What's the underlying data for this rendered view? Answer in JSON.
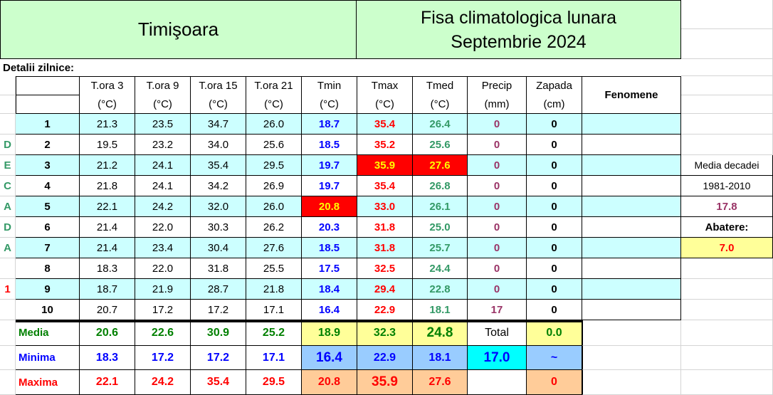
{
  "header": {
    "city": "Timişoara",
    "title_line1": "Fisa climatologica lunara",
    "title_line2": "Septembrie 2024"
  },
  "section_label": "Detalii zilnice:",
  "table": {
    "columns": [
      {
        "name": "T.ora 3",
        "unit": "(°C)"
      },
      {
        "name": "T.ora 9",
        "unit": "(°C)"
      },
      {
        "name": "T.ora 15",
        "unit": "(°C)"
      },
      {
        "name": "T.ora 21",
        "unit": "(°C)"
      },
      {
        "name": "Tmin",
        "unit": "(°C)"
      },
      {
        "name": "Tmax",
        "unit": "(°C)"
      },
      {
        "name": "Tmed",
        "unit": "(°C)"
      },
      {
        "name": "Precip",
        "unit": "(mm)"
      },
      {
        "name": "Zapada",
        "unit": "(cm)"
      },
      {
        "name": "Fenomene"
      }
    ],
    "rows": [
      {
        "day": "1",
        "values": [
          "21.3",
          "23.5",
          "34.7",
          "26.0",
          "18.7",
          "35.4",
          "26.4",
          "0",
          "0"
        ]
      },
      {
        "mark": "D",
        "day": "2",
        "values": [
          "19.5",
          "23.2",
          "34.0",
          "25.6",
          "18.5",
          "35.2",
          "25.6",
          "0",
          "0"
        ]
      },
      {
        "mark": "E",
        "day": "3",
        "values": [
          "21.2",
          "24.1",
          "35.4",
          "29.5",
          "19.7",
          "35.9",
          "27.6",
          "0",
          "0"
        ]
      },
      {
        "mark": "C",
        "day": "4",
        "values": [
          "21.8",
          "24.1",
          "34.2",
          "26.9",
          "19.7",
          "35.4",
          "26.8",
          "0",
          "0"
        ]
      },
      {
        "mark": "A",
        "day": "5",
        "values": [
          "22.1",
          "24.2",
          "32.0",
          "26.0",
          "20.8",
          "33.0",
          "26.1",
          "0",
          "0"
        ]
      },
      {
        "mark": "D",
        "day": "6",
        "values": [
          "21.4",
          "22.0",
          "30.3",
          "26.2",
          "20.3",
          "31.8",
          "25.0",
          "0",
          "0"
        ]
      },
      {
        "mark": "A",
        "day": "7",
        "values": [
          "21.4",
          "23.4",
          "30.4",
          "27.6",
          "18.5",
          "31.8",
          "25.7",
          "0",
          "0"
        ]
      },
      {
        "day": "8",
        "values": [
          "18.3",
          "22.0",
          "31.8",
          "25.5",
          "17.5",
          "32.5",
          "24.4",
          "0",
          "0"
        ]
      },
      {
        "mark": "1",
        "day": "9",
        "values": [
          "18.7",
          "21.9",
          "28.7",
          "21.8",
          "18.4",
          "29.4",
          "22.8",
          "0",
          "0"
        ]
      },
      {
        "day": "10",
        "values": [
          "20.7",
          "17.2",
          "17.2",
          "17.1",
          "16.4",
          "22.9",
          "18.1",
          "17",
          "0"
        ]
      }
    ]
  },
  "summary": [
    {
      "label": "Media",
      "values": [
        "20.6",
        "22.6",
        "30.9",
        "25.2",
        "18.9",
        "32.3",
        "24.8",
        "Total",
        "0.0"
      ]
    },
    {
      "label": "Minima",
      "values": [
        "18.3",
        "17.2",
        "17.2",
        "17.1",
        "16.4",
        "22.9",
        "18.1",
        "17.0",
        "~"
      ]
    },
    {
      "label": "Maxima",
      "values": [
        "22.1",
        "24.2",
        "35.4",
        "29.5",
        "20.8",
        "35.9",
        "27.6",
        null,
        "0"
      ]
    }
  ],
  "side": {
    "label": "Media decadei",
    "period": "1981-2010",
    "normal": "17.8",
    "deviation_label": "Abatere:",
    "deviation": "7.0"
  }
}
